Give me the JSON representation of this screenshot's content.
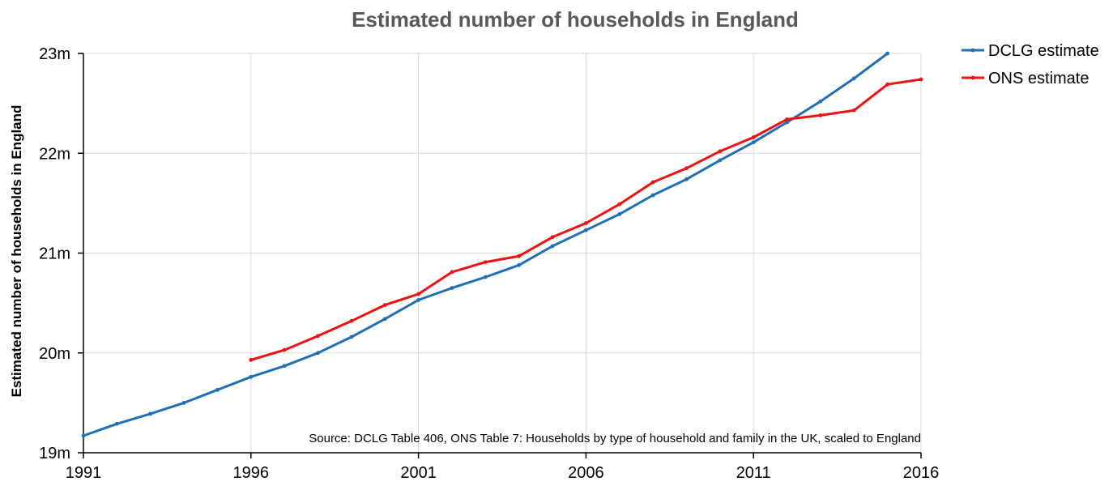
{
  "chart_data": {
    "type": "line",
    "title": "Estimated number of households in England",
    "xlabel": "",
    "ylabel": "Estimated number of households in England",
    "xlim": [
      1991,
      2016
    ],
    "ylim": [
      19,
      23
    ],
    "x_ticks": [
      1991,
      1996,
      2001,
      2006,
      2011,
      2016
    ],
    "x_tick_labels": [
      "1991",
      "1996",
      "2001",
      "2006",
      "2011",
      "2016"
    ],
    "y_ticks": [
      19,
      20,
      21,
      22,
      23
    ],
    "y_tick_labels": [
      "19m",
      "20m",
      "21m",
      "22m",
      "23m"
    ],
    "grid": true,
    "legend_position": "top-right, outside plot",
    "annotation": "Source: DCLG Table 406, ONS Table 7: Households by type of household and family in the UK, scaled to England",
    "series": [
      {
        "name": "DCLG estimate",
        "color": "#1f6fb5",
        "x": [
          1991,
          1992,
          1993,
          1994,
          1995,
          1996,
          1997,
          1998,
          1999,
          2000,
          2001,
          2002,
          2003,
          2004,
          2005,
          2006,
          2007,
          2008,
          2009,
          2010,
          2011,
          2012,
          2013,
          2014,
          2015
        ],
        "values": [
          19.17,
          19.29,
          19.39,
          19.5,
          19.63,
          19.76,
          19.87,
          20.0,
          20.16,
          20.34,
          20.53,
          20.65,
          20.76,
          20.88,
          21.07,
          21.23,
          21.39,
          21.58,
          21.74,
          21.93,
          22.11,
          22.31,
          22.52,
          22.75,
          23.0
        ]
      },
      {
        "name": "ONS estimate",
        "color": "#ee1111",
        "x": [
          1996,
          1997,
          1998,
          1999,
          2000,
          2001,
          2002,
          2003,
          2004,
          2005,
          2006,
          2007,
          2008,
          2009,
          2010,
          2011,
          2012,
          2013,
          2014,
          2015,
          2016
        ],
        "values": [
          19.93,
          20.03,
          20.17,
          20.32,
          20.48,
          20.59,
          20.81,
          20.91,
          20.97,
          21.16,
          21.3,
          21.49,
          21.71,
          21.85,
          22.02,
          22.16,
          22.34,
          22.38,
          22.43,
          22.69,
          22.74
        ]
      }
    ]
  }
}
